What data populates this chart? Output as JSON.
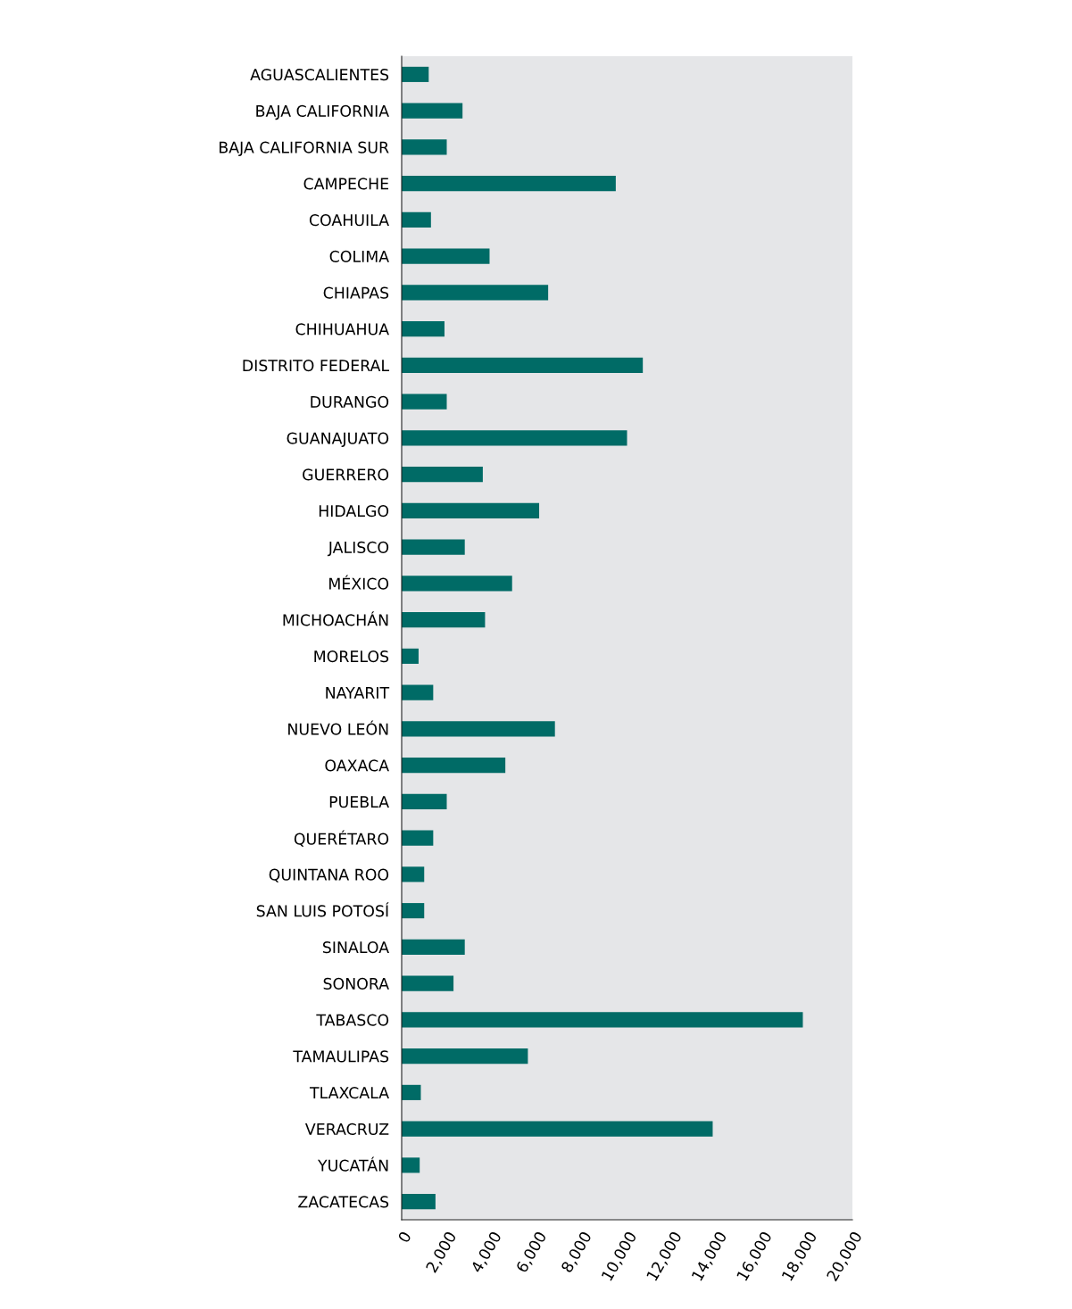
{
  "chart_data": {
    "type": "bar",
    "orientation": "horizontal",
    "categories": [
      "AGUASCALIENTES",
      "BAJA CALIFORNIA",
      "BAJA CALIFORNIA SUR",
      "CAMPECHE",
      "COAHUILA",
      "COLIMA",
      "CHIAPAS",
      "CHIHUAHUA",
      "DISTRITO FEDERAL",
      "DURANGO",
      "GUANAJUATO",
      "GUERRERO",
      "HIDALGO",
      "JALISCO",
      "MÉXICO",
      "MICHOACHÁN",
      "MORELOS",
      "NAYARIT",
      "NUEVO LEÓN",
      "OAXACA",
      "PUEBLA",
      "QUERÉTARO",
      "QUINTANA ROO",
      "SAN LUIS POTOSÍ",
      "SINALOA",
      "SONORA",
      "TABASCO",
      "TAMAULIPAS",
      "TLAXCALA",
      "VERACRUZ",
      "YUCATÁN",
      "ZACATECAS"
    ],
    "values": [
      1200,
      2700,
      2000,
      9500,
      1300,
      3900,
      6500,
      1900,
      10700,
      2000,
      10000,
      3600,
      6100,
      2800,
      4900,
      3700,
      750,
      1400,
      6800,
      4600,
      2000,
      1400,
      1000,
      1000,
      2800,
      2300,
      17800,
      5600,
      850,
      13800,
      800,
      1500
    ],
    "color": "#006b66",
    "xlim": [
      0,
      20000
    ],
    "xticks": [
      0,
      {
        "value": 2000,
        "label": "2,000"
      },
      {
        "value": 4000,
        "label": "4,000"
      },
      {
        "value": 6000,
        "label": "6,000"
      },
      {
        "value": 8000,
        "label": "8,000"
      },
      {
        "value": 10000,
        "label": "10,000"
      },
      {
        "value": 12000,
        "label": "12,000"
      },
      {
        "value": 14000,
        "label": "14,000"
      },
      {
        "value": 16000,
        "label": "16,000"
      },
      {
        "value": 18000,
        "label": "18,000"
      },
      {
        "value": 20000,
        "label": "20,000"
      }
    ],
    "grid": false,
    "legend": false
  }
}
